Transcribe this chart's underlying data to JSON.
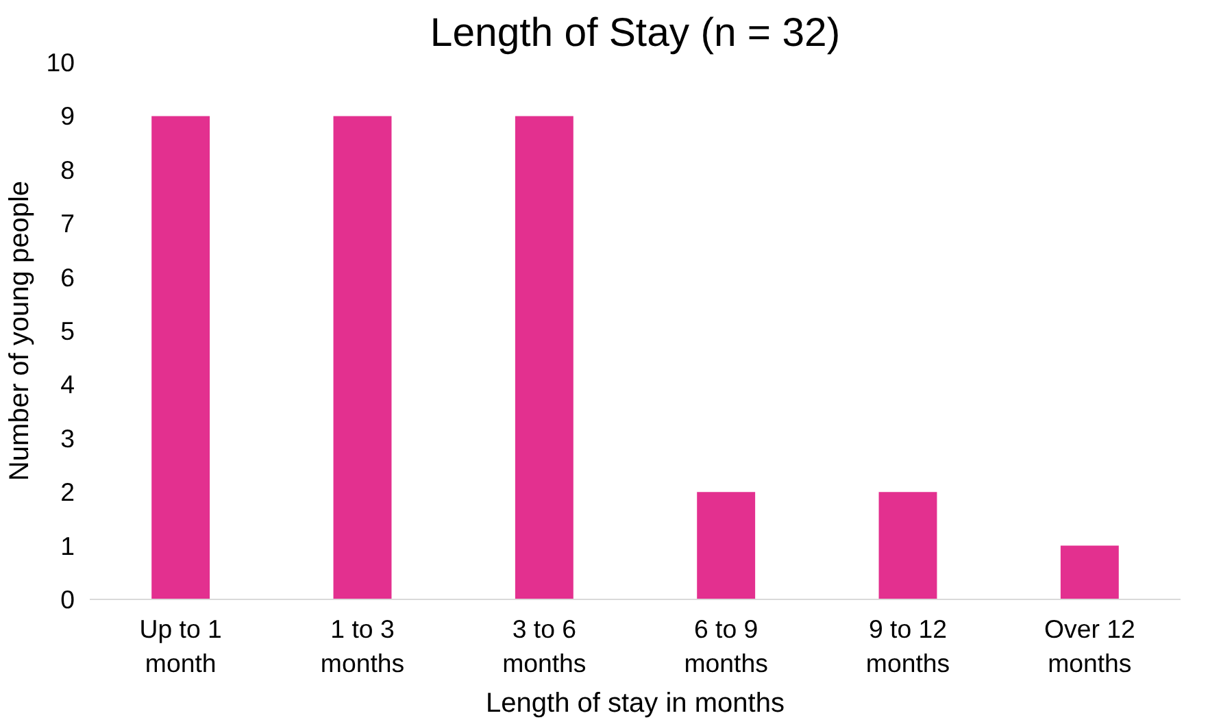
{
  "chart_data": {
    "type": "bar",
    "title": "Length of Stay (n = 32)",
    "xlabel": "Length of stay in months",
    "ylabel": "Number of young people",
    "categories": [
      "Up to 1\nmonth",
      "1 to 3\nmonths",
      "3 to 6\nmonths",
      "6 to 9\nmonths",
      "9 to 12\nmonths",
      "Over 12\nmonths"
    ],
    "values": [
      9,
      9,
      9,
      2,
      2,
      1
    ],
    "color": "#e3308f",
    "ylim": [
      0,
      10
    ],
    "yticks": [
      0,
      1,
      2,
      3,
      4,
      5,
      6,
      7,
      8,
      9,
      10
    ],
    "grid": false
  }
}
